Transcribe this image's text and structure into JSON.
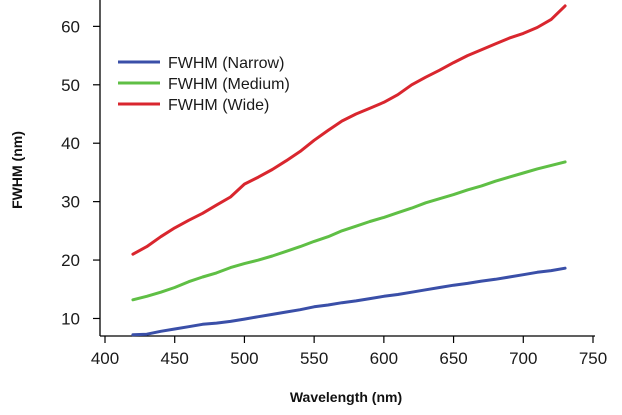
{
  "chart_data": {
    "type": "line",
    "title": "",
    "xlabel": "Wavelength (nm)",
    "ylabel": "FWHM (nm)",
    "xlim": [
      400,
      750
    ],
    "ylim": [
      7,
      64
    ],
    "x_ticks": [
      400,
      450,
      500,
      550,
      600,
      650,
      700,
      750
    ],
    "y_ticks": [
      10,
      20,
      30,
      40,
      50,
      60
    ],
    "grid": false,
    "legend_position": "top-left",
    "series": [
      {
        "name": "FWHM (Narrow)",
        "color": "#3a4fa8",
        "x": [
          420,
          430,
          440,
          450,
          460,
          470,
          480,
          490,
          500,
          510,
          520,
          530,
          540,
          550,
          560,
          570,
          580,
          590,
          600,
          610,
          620,
          630,
          640,
          650,
          660,
          670,
          680,
          690,
          700,
          710,
          720,
          730
        ],
        "y": [
          7.2,
          7.3,
          7.8,
          8.2,
          8.6,
          9.0,
          9.2,
          9.5,
          9.9,
          10.3,
          10.7,
          11.1,
          11.5,
          12.0,
          12.3,
          12.7,
          13.0,
          13.4,
          13.8,
          14.1,
          14.5,
          14.9,
          15.3,
          15.7,
          16.0,
          16.4,
          16.7,
          17.1,
          17.5,
          17.9,
          18.2,
          18.6
        ]
      },
      {
        "name": "FWHM (Medium)",
        "color": "#5fbf45",
        "x": [
          420,
          430,
          440,
          450,
          460,
          470,
          480,
          490,
          500,
          510,
          520,
          530,
          540,
          550,
          560,
          570,
          580,
          590,
          600,
          610,
          620,
          630,
          640,
          650,
          660,
          670,
          680,
          690,
          700,
          710,
          720,
          730
        ],
        "y": [
          13.2,
          13.8,
          14.5,
          15.3,
          16.3,
          17.1,
          17.8,
          18.7,
          19.4,
          20.0,
          20.7,
          21.5,
          22.3,
          23.2,
          24.0,
          25.0,
          25.8,
          26.6,
          27.3,
          28.1,
          28.9,
          29.8,
          30.5,
          31.2,
          32.0,
          32.7,
          33.5,
          34.2,
          34.9,
          35.6,
          36.2,
          36.8
        ]
      },
      {
        "name": "FWHM (Wide)",
        "color": "#d9262e",
        "x": [
          420,
          430,
          440,
          450,
          460,
          470,
          480,
          490,
          500,
          510,
          520,
          530,
          540,
          550,
          560,
          570,
          580,
          590,
          600,
          610,
          620,
          630,
          640,
          650,
          660,
          670,
          680,
          690,
          700,
          710,
          720,
          730
        ],
        "y": [
          21.0,
          22.3,
          24.0,
          25.5,
          26.8,
          28.0,
          29.4,
          30.8,
          33.0,
          34.2,
          35.5,
          37.0,
          38.6,
          40.5,
          42.2,
          43.8,
          45.0,
          46.0,
          47.0,
          48.3,
          50.0,
          51.3,
          52.5,
          53.8,
          55.0,
          56.0,
          57.0,
          58.0,
          58.8,
          59.8,
          61.2,
          63.5
        ]
      }
    ]
  }
}
